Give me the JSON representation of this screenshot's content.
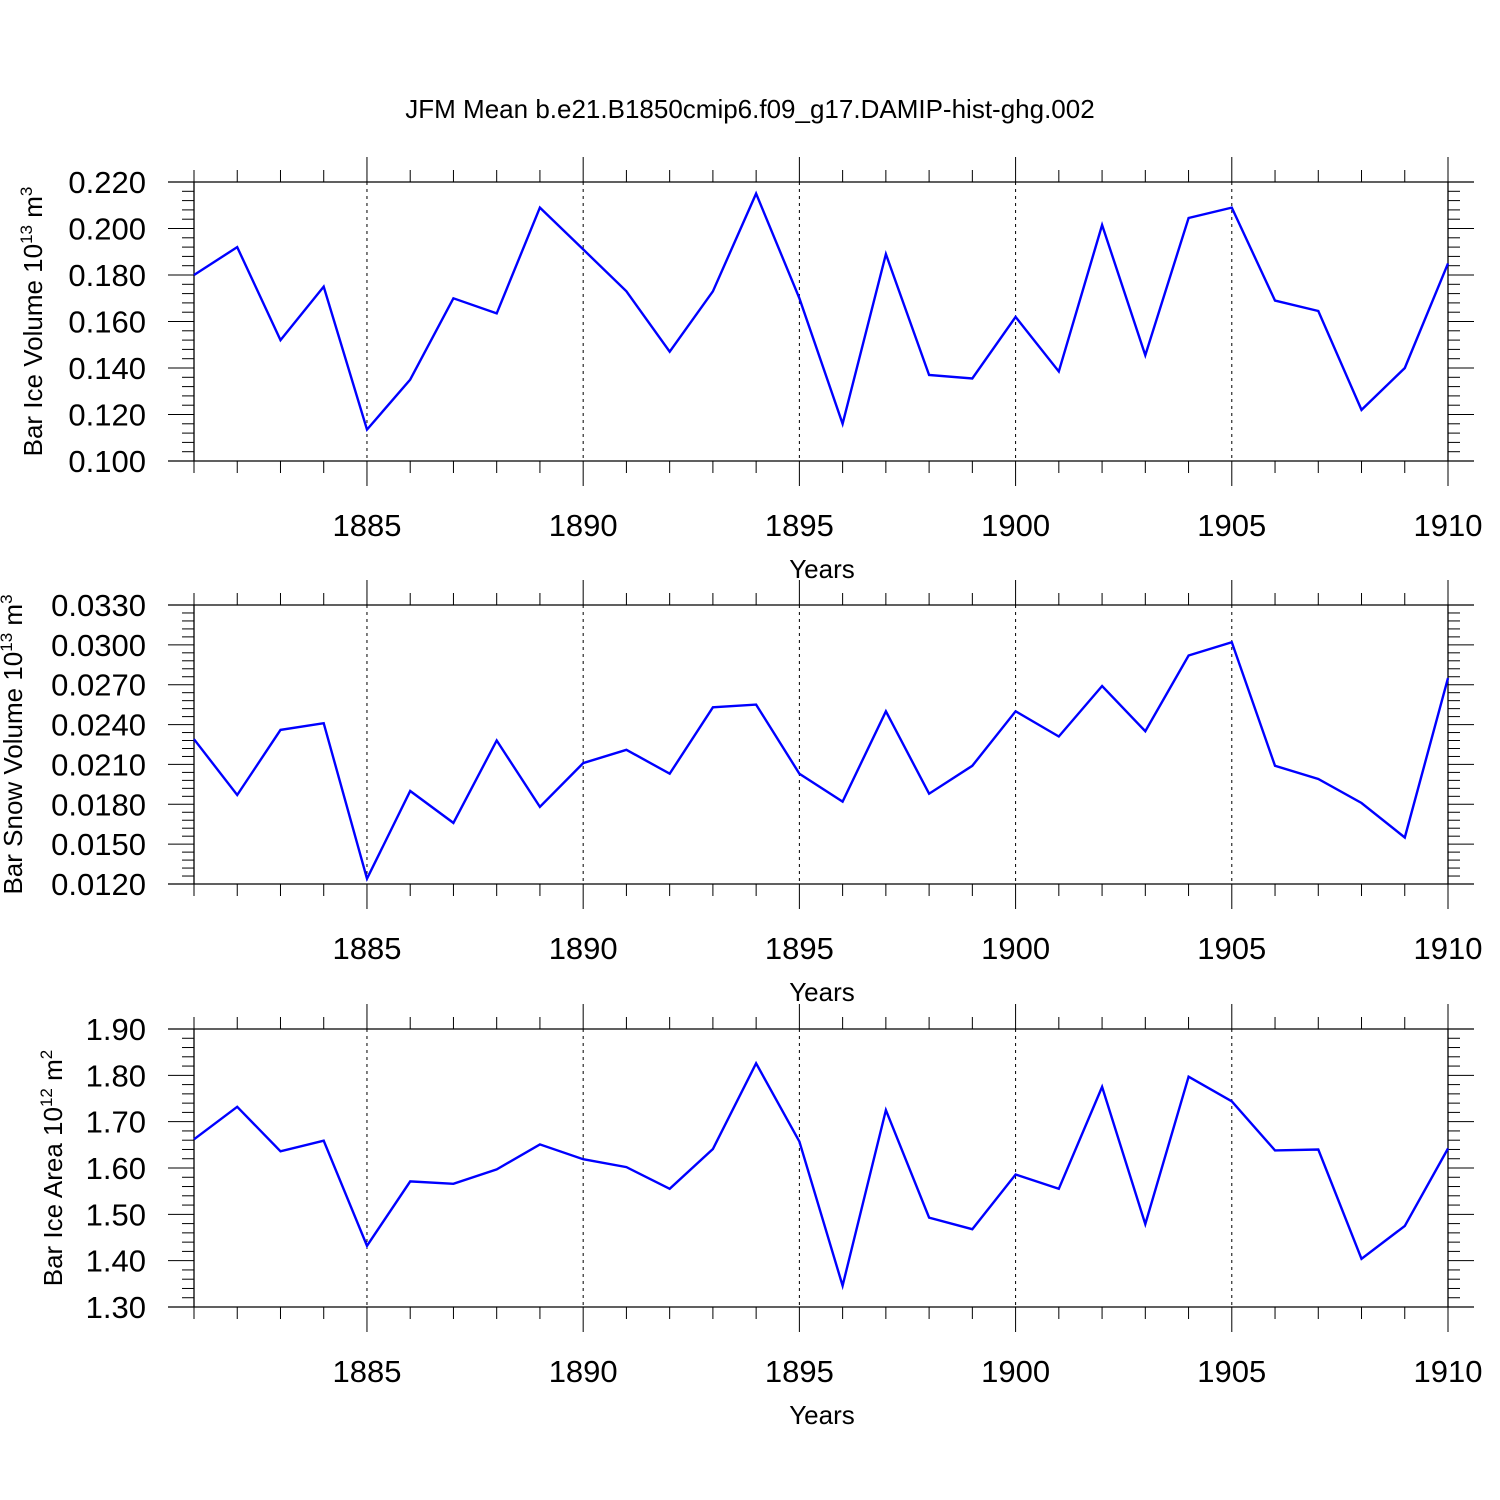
{
  "title": "JFM Mean b.e21.B1850cmip6.f09_g17.DAMIP-hist-ghg.002",
  "colors": {
    "line": "#0000ff",
    "axis": "#000000",
    "grid": "#000000"
  },
  "chart_data": [
    {
      "type": "line",
      "title": "JFM Mean b.e21.B1850cmip6.f09_g17.DAMIP-hist-ghg.002",
      "xlabel": "Years",
      "ylabel": {
        "prefix": "Bar Ice Volume 10",
        "exp": "13",
        "unit": " m",
        "unit_exp": "3"
      },
      "xlim": [
        1881,
        1910
      ],
      "ylim": [
        0.1,
        0.22
      ],
      "xticks": [
        "1885",
        "1890",
        "1895",
        "1900",
        "1905",
        "1910"
      ],
      "yticks": [
        "0.100",
        "0.120",
        "0.140",
        "0.160",
        "0.180",
        "0.200",
        "0.220"
      ],
      "x": [
        1881,
        1882,
        1883,
        1884,
        1885,
        1886,
        1887,
        1888,
        1889,
        1890,
        1891,
        1892,
        1893,
        1894,
        1895,
        1896,
        1897,
        1898,
        1899,
        1900,
        1901,
        1902,
        1903,
        1904,
        1905,
        1906,
        1907,
        1908,
        1909,
        1910
      ],
      "series": [
        {
          "name": "Bar Ice Volume",
          "values": [
            0.18,
            0.192,
            0.152,
            0.175,
            0.1135,
            0.135,
            0.17,
            0.1635,
            0.209,
            0.191,
            0.173,
            0.147,
            0.173,
            0.215,
            0.17,
            0.116,
            0.189,
            0.137,
            0.1355,
            0.162,
            0.1385,
            0.2015,
            0.1455,
            0.2045,
            0.209,
            0.169,
            0.1645,
            0.122,
            0.14,
            0.185
          ]
        }
      ],
      "grid": "dashed vertical at major x ticks"
    },
    {
      "type": "line",
      "xlabel": "Years",
      "ylabel": {
        "prefix": "Bar Snow Volume 10",
        "exp": "13",
        "unit": " m",
        "unit_exp": "3"
      },
      "xlim": [
        1881,
        1910
      ],
      "ylim": [
        0.012,
        0.033
      ],
      "xticks": [
        "1885",
        "1890",
        "1895",
        "1900",
        "1905",
        "1910"
      ],
      "yticks": [
        "0.0120",
        "0.0150",
        "0.0180",
        "0.0210",
        "0.0240",
        "0.0270",
        "0.0300",
        "0.0330"
      ],
      "x": [
        1881,
        1882,
        1883,
        1884,
        1885,
        1886,
        1887,
        1888,
        1889,
        1890,
        1891,
        1892,
        1893,
        1894,
        1895,
        1896,
        1897,
        1898,
        1899,
        1900,
        1901,
        1902,
        1903,
        1904,
        1905,
        1906,
        1907,
        1908,
        1909,
        1910
      ],
      "series": [
        {
          "name": "Bar Snow Volume",
          "values": [
            0.0229,
            0.0187,
            0.0236,
            0.0241,
            0.0124,
            0.019,
            0.0166,
            0.0228,
            0.0178,
            0.0211,
            0.0221,
            0.0203,
            0.0253,
            0.0255,
            0.0203,
            0.0182,
            0.025,
            0.0188,
            0.0209,
            0.025,
            0.0231,
            0.0269,
            0.0235,
            0.0292,
            0.0302,
            0.0209,
            0.0199,
            0.0181,
            0.0155,
            0.0275
          ]
        }
      ],
      "grid": "dashed vertical at major x ticks"
    },
    {
      "type": "line",
      "xlabel": "Years",
      "ylabel": {
        "prefix": "Bar Ice Area 10",
        "exp": "12",
        "unit": " m",
        "unit_exp": "2"
      },
      "xlim": [
        1881,
        1910
      ],
      "ylim": [
        1.3,
        1.9
      ],
      "xticks": [
        "1885",
        "1890",
        "1895",
        "1900",
        "1905",
        "1910"
      ],
      "yticks": [
        "1.30",
        "1.40",
        "1.50",
        "1.60",
        "1.70",
        "1.80",
        "1.90"
      ],
      "x": [
        1881,
        1882,
        1883,
        1884,
        1885,
        1886,
        1887,
        1888,
        1889,
        1890,
        1891,
        1892,
        1893,
        1894,
        1895,
        1896,
        1897,
        1898,
        1899,
        1900,
        1901,
        1902,
        1903,
        1904,
        1905,
        1906,
        1907,
        1908,
        1909,
        1910
      ],
      "series": [
        {
          "name": "Bar Ice Area",
          "values": [
            1.662,
            1.732,
            1.636,
            1.659,
            1.432,
            1.571,
            1.566,
            1.597,
            1.651,
            1.619,
            1.602,
            1.555,
            1.641,
            1.826,
            1.657,
            1.346,
            1.725,
            1.493,
            1.468,
            1.586,
            1.555,
            1.775,
            1.479,
            1.797,
            1.744,
            1.638,
            1.64,
            1.404,
            1.475,
            1.642
          ]
        }
      ],
      "grid": "dashed vertical at major x ticks"
    }
  ]
}
